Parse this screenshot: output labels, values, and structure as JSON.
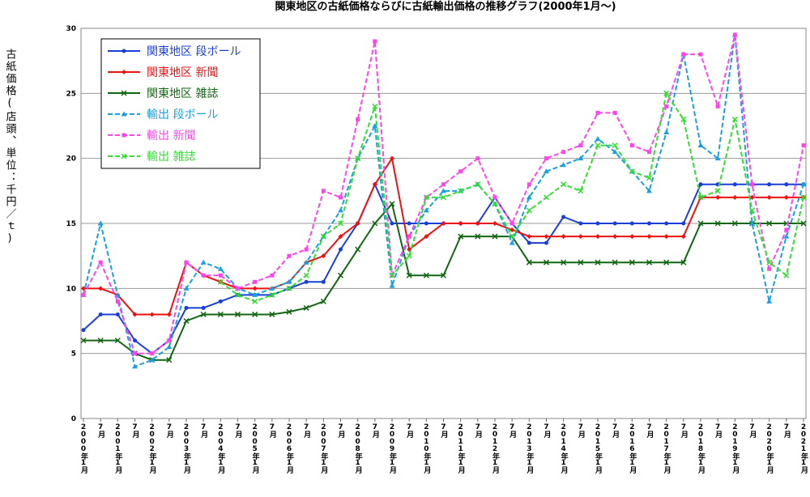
{
  "chart_data": {
    "type": "line",
    "title": "関東地区の古紙価格ならびに古紙輸出価格の推移グラフ(2000年1月～)",
    "y_label": "古紙価格(店頭、単位：千円／ｔ)",
    "categories": [
      "2000年1月",
      "7月",
      "2001年1月",
      "7月",
      "2002年1月",
      "7月",
      "2003年1月",
      "7月",
      "2004年1月",
      "7月",
      "2005年1月",
      "7月",
      "2006年1月",
      "7月",
      "2007年1月",
      "7月",
      "2008年1月",
      "7月",
      "2009年1月",
      "7月",
      "2010年1月",
      "7月",
      "2011年1月",
      "7月",
      "2012年1月",
      "7月",
      "2013年1月",
      "7月",
      "2014年1月",
      "7月",
      "2015年1月",
      "7月",
      "2016年1月",
      "7月",
      "2017年1月",
      "7月",
      "2018年1月",
      "7月",
      "2019年1月",
      "7月",
      "2020年1月",
      "7月",
      "2021年1月"
    ],
    "ylim": [
      0,
      30
    ],
    "yticks": [
      0,
      5,
      10,
      15,
      20,
      25,
      30
    ],
    "grid": true,
    "legend": "upper left",
    "series": [
      {
        "name": "関東地区 段ボール",
        "color": "#1a3fd6",
        "dash": false,
        "marker": "circle",
        "values": [
          6.8,
          8,
          8,
          6,
          5,
          6,
          8.5,
          8.5,
          9,
          9.5,
          9.5,
          9.5,
          10,
          10.5,
          10.5,
          13,
          15,
          18,
          15,
          15,
          15,
          15,
          15,
          15,
          17,
          15,
          13.5,
          13.5,
          15.5,
          15,
          15,
          15,
          15,
          15,
          15,
          15,
          18,
          18,
          18,
          18,
          18,
          18,
          18
        ]
      },
      {
        "name": "関東地区 新聞",
        "color": "#ee1111",
        "dash": false,
        "marker": "diamond",
        "values": [
          10,
          10,
          9.5,
          8,
          8,
          8,
          12,
          11,
          10.5,
          10,
          10,
          10,
          10.5,
          12,
          12.5,
          14,
          15,
          18,
          20,
          13,
          14,
          15,
          15,
          15,
          15,
          14.5,
          14,
          14,
          14,
          14,
          14,
          14,
          14,
          14,
          14,
          14,
          17,
          17,
          17,
          17,
          17,
          17,
          17
        ]
      },
      {
        "name": "関東地区 雑誌",
        "color": "#116611",
        "dash": false,
        "marker": "x",
        "values": [
          6,
          6,
          6,
          5,
          4.5,
          4.5,
          7.5,
          8,
          8,
          8,
          8,
          8,
          8.2,
          8.5,
          9,
          11,
          13,
          15,
          16.5,
          11,
          11,
          11,
          14,
          14,
          14,
          14,
          12,
          12,
          12,
          12,
          12,
          12,
          12,
          12,
          12,
          12,
          15,
          15,
          15,
          15,
          15,
          15,
          15
        ]
      },
      {
        "name": "輸出 段ボール",
        "color": "#1aa0e0",
        "dash": true,
        "marker": "triangle",
        "values": [
          9.5,
          15,
          9.5,
          4,
          4.5,
          5.5,
          10,
          12,
          11.5,
          10,
          9.5,
          10,
          10.5,
          12,
          14,
          16,
          20,
          22.5,
          10.2,
          14,
          16,
          17.5,
          17.5,
          18,
          16.5,
          13.5,
          17,
          19,
          19.5,
          20,
          21.5,
          20.5,
          19,
          17.5,
          22,
          28,
          21,
          20,
          29.5,
          15,
          9,
          14,
          18
        ]
      },
      {
        "name": "輸出 新聞",
        "color": "#ff44ee",
        "dash": true,
        "marker": "square",
        "values": [
          9.5,
          12,
          9,
          5,
          5,
          6,
          12,
          11,
          11,
          10,
          10.5,
          11,
          12.5,
          13,
          17.5,
          17,
          23,
          29,
          11,
          14,
          17,
          18,
          19,
          20,
          17,
          15,
          18,
          20,
          20.5,
          21,
          23.5,
          23.5,
          21,
          20.5,
          24,
          28,
          28,
          24,
          29.5,
          18,
          11.5,
          14.5,
          21
        ]
      },
      {
        "name": "輸出 雑誌",
        "color": "#33dd33",
        "dash": true,
        "marker": "x",
        "values": [
          null,
          null,
          null,
          null,
          null,
          null,
          null,
          null,
          10.5,
          9.5,
          9,
          9.5,
          10,
          11,
          14,
          15,
          20,
          24,
          11,
          12.5,
          17,
          17,
          17.5,
          18,
          16.5,
          14,
          16,
          17,
          18,
          17.5,
          21,
          21,
          19,
          18.5,
          25,
          23,
          17,
          17.5,
          23,
          16,
          12,
          11,
          17
        ]
      }
    ]
  }
}
